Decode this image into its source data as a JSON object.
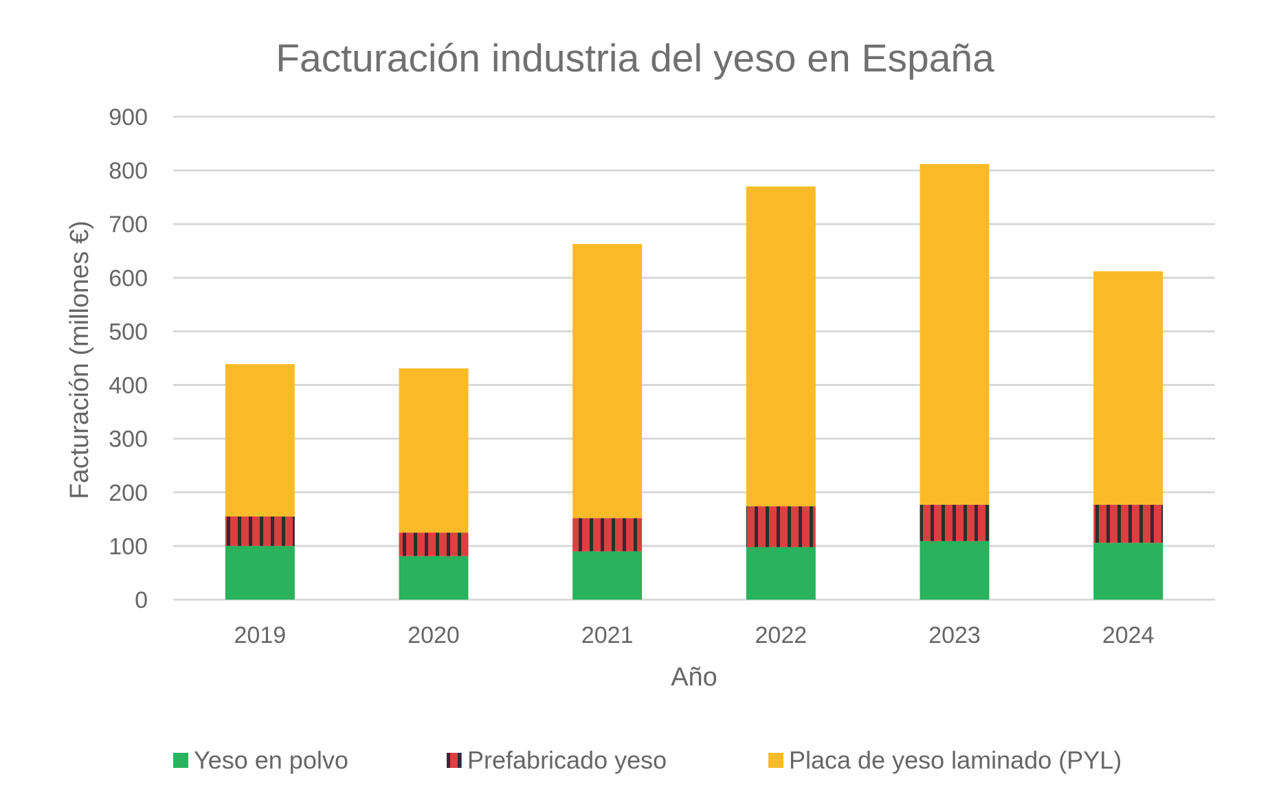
{
  "chart_data": {
    "type": "bar",
    "stacked": true,
    "title": "Facturación industria del yeso en España",
    "xlabel": "Año",
    "ylabel": "Facturación (millones €)",
    "ylim": [
      0,
      900
    ],
    "ytick_step": 100,
    "yticks": [
      "0",
      "100",
      "200",
      "300",
      "400",
      "500",
      "600",
      "700",
      "800",
      "900"
    ],
    "grid": true,
    "legend_position": "bottom",
    "categories": [
      "2019",
      "2020",
      "2021",
      "2022",
      "2023",
      "2024"
    ],
    "series": [
      {
        "name": "Yeso en polvo",
        "color": "#2ab25c",
        "pattern": "solid",
        "values": [
          100,
          81,
          90,
          98,
          109,
          106
        ]
      },
      {
        "name": "Prefabricado yeso",
        "color": "#d94040",
        "stripe_color": "#2e2e2e",
        "pattern": "vertical-stripes",
        "values": [
          55,
          44,
          62,
          76,
          68,
          71
        ]
      },
      {
        "name": "Placa de yeso laminado (PYL)",
        "color": "#fbbb29",
        "pattern": "solid",
        "values": [
          284,
          306,
          511,
          596,
          635,
          435
        ]
      }
    ]
  }
}
